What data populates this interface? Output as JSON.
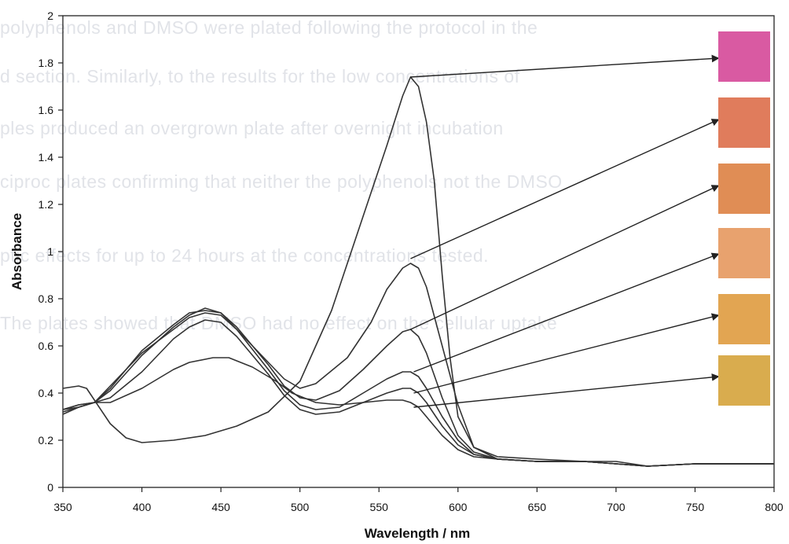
{
  "chart_data": {
    "type": "line",
    "xlabel": "Wavelength / nm",
    "ylabel": "Absorbance",
    "xlim": [
      350,
      800
    ],
    "ylim": [
      0,
      2
    ],
    "x_ticks": [
      "350",
      "400",
      "450",
      "500",
      "550",
      "600",
      "650",
      "700",
      "750",
      "800"
    ],
    "y_ticks": [
      "0",
      "0.2",
      "0.4",
      "0.6",
      "0.8",
      "1",
      "1.2",
      "1.4",
      "1.6",
      "1.8",
      "2"
    ],
    "grid": false,
    "line_color": "#333333",
    "series": [
      {
        "points": [
          [
            350,
            0.42
          ],
          [
            360,
            0.43
          ],
          [
            365,
            0.42
          ],
          [
            370,
            0.37
          ],
          [
            380,
            0.27
          ],
          [
            390,
            0.21
          ],
          [
            400,
            0.19
          ],
          [
            420,
            0.2
          ],
          [
            440,
            0.22
          ],
          [
            460,
            0.26
          ],
          [
            480,
            0.32
          ],
          [
            500,
            0.45
          ],
          [
            520,
            0.75
          ],
          [
            540,
            1.15
          ],
          [
            555,
            1.45
          ],
          [
            565,
            1.66
          ],
          [
            570,
            1.74
          ],
          [
            575,
            1.7
          ],
          [
            580,
            1.55
          ],
          [
            585,
            1.3
          ],
          [
            590,
            0.9
          ],
          [
            595,
            0.55
          ],
          [
            600,
            0.3
          ],
          [
            610,
            0.17
          ],
          [
            625,
            0.13
          ],
          [
            650,
            0.12
          ],
          [
            680,
            0.11
          ],
          [
            700,
            0.11
          ],
          [
            720,
            0.09
          ],
          [
            750,
            0.1
          ],
          [
            780,
            0.1
          ],
          [
            800,
            0.1
          ]
        ],
        "swatch_color": "#d95aa2"
      },
      {
        "points": [
          [
            350,
            0.33
          ],
          [
            360,
            0.34
          ],
          [
            370,
            0.36
          ],
          [
            380,
            0.43
          ],
          [
            400,
            0.57
          ],
          [
            420,
            0.67
          ],
          [
            430,
            0.72
          ],
          [
            440,
            0.74
          ],
          [
            450,
            0.73
          ],
          [
            460,
            0.67
          ],
          [
            480,
            0.53
          ],
          [
            490,
            0.46
          ],
          [
            500,
            0.42
          ],
          [
            510,
            0.44
          ],
          [
            530,
            0.55
          ],
          [
            545,
            0.7
          ],
          [
            555,
            0.84
          ],
          [
            565,
            0.93
          ],
          [
            570,
            0.95
          ],
          [
            575,
            0.93
          ],
          [
            580,
            0.85
          ],
          [
            590,
            0.6
          ],
          [
            600,
            0.35
          ],
          [
            610,
            0.17
          ],
          [
            625,
            0.12
          ],
          [
            650,
            0.11
          ],
          [
            680,
            0.11
          ],
          [
            700,
            0.1
          ],
          [
            720,
            0.09
          ],
          [
            750,
            0.1
          ],
          [
            800,
            0.1
          ]
        ],
        "swatch_color": "#e07c5c"
      },
      {
        "points": [
          [
            350,
            0.32
          ],
          [
            360,
            0.34
          ],
          [
            370,
            0.36
          ],
          [
            380,
            0.42
          ],
          [
            400,
            0.58
          ],
          [
            420,
            0.69
          ],
          [
            430,
            0.74
          ],
          [
            440,
            0.75
          ],
          [
            450,
            0.74
          ],
          [
            460,
            0.68
          ],
          [
            480,
            0.52
          ],
          [
            490,
            0.43
          ],
          [
            500,
            0.38
          ],
          [
            510,
            0.37
          ],
          [
            525,
            0.41
          ],
          [
            540,
            0.5
          ],
          [
            555,
            0.6
          ],
          [
            565,
            0.66
          ],
          [
            570,
            0.67
          ],
          [
            575,
            0.64
          ],
          [
            580,
            0.57
          ],
          [
            590,
            0.38
          ],
          [
            600,
            0.22
          ],
          [
            610,
            0.15
          ],
          [
            625,
            0.12
          ],
          [
            650,
            0.11
          ],
          [
            680,
            0.11
          ],
          [
            720,
            0.09
          ],
          [
            750,
            0.1
          ],
          [
            800,
            0.1
          ]
        ],
        "swatch_color": "#e08d55"
      },
      {
        "points": [
          [
            350,
            0.33
          ],
          [
            360,
            0.35
          ],
          [
            370,
            0.36
          ],
          [
            380,
            0.41
          ],
          [
            400,
            0.56
          ],
          [
            420,
            0.68
          ],
          [
            430,
            0.73
          ],
          [
            440,
            0.76
          ],
          [
            450,
            0.74
          ],
          [
            460,
            0.67
          ],
          [
            480,
            0.5
          ],
          [
            490,
            0.41
          ],
          [
            500,
            0.35
          ],
          [
            510,
            0.33
          ],
          [
            525,
            0.34
          ],
          [
            540,
            0.4
          ],
          [
            555,
            0.46
          ],
          [
            565,
            0.49
          ],
          [
            570,
            0.49
          ],
          [
            575,
            0.47
          ],
          [
            580,
            0.42
          ],
          [
            590,
            0.3
          ],
          [
            600,
            0.2
          ],
          [
            610,
            0.14
          ],
          [
            625,
            0.12
          ],
          [
            650,
            0.11
          ],
          [
            680,
            0.11
          ],
          [
            720,
            0.09
          ],
          [
            750,
            0.1
          ],
          [
            800,
            0.1
          ]
        ],
        "swatch_color": "#e8a26e"
      },
      {
        "points": [
          [
            350,
            0.31
          ],
          [
            360,
            0.34
          ],
          [
            370,
            0.36
          ],
          [
            380,
            0.38
          ],
          [
            400,
            0.49
          ],
          [
            420,
            0.63
          ],
          [
            430,
            0.68
          ],
          [
            440,
            0.71
          ],
          [
            450,
            0.7
          ],
          [
            460,
            0.64
          ],
          [
            480,
            0.48
          ],
          [
            490,
            0.39
          ],
          [
            500,
            0.33
          ],
          [
            510,
            0.31
          ],
          [
            525,
            0.32
          ],
          [
            540,
            0.36
          ],
          [
            555,
            0.4
          ],
          [
            565,
            0.42
          ],
          [
            570,
            0.42
          ],
          [
            575,
            0.4
          ],
          [
            580,
            0.36
          ],
          [
            590,
            0.26
          ],
          [
            600,
            0.18
          ],
          [
            610,
            0.14
          ],
          [
            625,
            0.12
          ],
          [
            650,
            0.11
          ],
          [
            680,
            0.11
          ],
          [
            720,
            0.09
          ],
          [
            750,
            0.1
          ],
          [
            800,
            0.1
          ]
        ],
        "swatch_color": "#e2a552"
      },
      {
        "points": [
          [
            350,
            0.33
          ],
          [
            360,
            0.35
          ],
          [
            370,
            0.36
          ],
          [
            380,
            0.36
          ],
          [
            400,
            0.42
          ],
          [
            420,
            0.5
          ],
          [
            430,
            0.53
          ],
          [
            445,
            0.55
          ],
          [
            455,
            0.55
          ],
          [
            470,
            0.51
          ],
          [
            485,
            0.45
          ],
          [
            495,
            0.4
          ],
          [
            510,
            0.36
          ],
          [
            525,
            0.35
          ],
          [
            540,
            0.36
          ],
          [
            555,
            0.37
          ],
          [
            565,
            0.37
          ],
          [
            570,
            0.36
          ],
          [
            575,
            0.34
          ],
          [
            580,
            0.3
          ],
          [
            590,
            0.22
          ],
          [
            600,
            0.16
          ],
          [
            610,
            0.13
          ],
          [
            625,
            0.12
          ],
          [
            650,
            0.11
          ],
          [
            680,
            0.11
          ],
          [
            720,
            0.09
          ],
          [
            750,
            0.1
          ],
          [
            800,
            0.1
          ]
        ],
        "swatch_color": "#d9ac4e"
      }
    ],
    "arrows": [
      {
        "from": [
          570,
          1.74
        ],
        "to": [
          765,
          1.82
        ]
      },
      {
        "from": [
          570,
          0.97
        ],
        "to": [
          765,
          1.56
        ]
      },
      {
        "from": [
          570,
          0.67
        ],
        "to": [
          765,
          1.28
        ]
      },
      {
        "from": [
          572,
          0.49
        ],
        "to": [
          765,
          0.99
        ]
      },
      {
        "from": [
          572,
          0.4
        ],
        "to": [
          765,
          0.73
        ]
      },
      {
        "from": [
          572,
          0.34
        ],
        "to": [
          765,
          0.47
        ]
      }
    ]
  },
  "background_text": [
    "polyphenols and DMSO were plated following the protocol in the",
    "d section. Similarly, to the results for the low concentrations of",
    "ples produced an overgrown plate after overnight incubation",
    "ciproc plates confirming that neither the polyphenols not the DMSO",
    "ptic effects for up to 24 hours at the concentrations tested.",
    "The plates showed that DMSO had no effect on the cellular uptake"
  ]
}
